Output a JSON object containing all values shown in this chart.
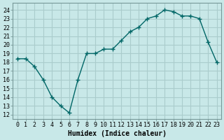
{
  "x": [
    0,
    1,
    2,
    3,
    4,
    5,
    6,
    7,
    8,
    9,
    10,
    11,
    12,
    13,
    14,
    15,
    16,
    17,
    18,
    19,
    20,
    21,
    22,
    23
  ],
  "y": [
    18.4,
    18.4,
    17.5,
    16.0,
    14.0,
    13.0,
    12.2,
    16.0,
    19.0,
    19.0,
    19.5,
    19.5,
    20.5,
    21.5,
    22.0,
    23.0,
    23.3,
    24.0,
    23.8,
    23.3,
    23.3,
    23.0,
    20.3,
    18.0
  ],
  "xlabel": "Humidex (Indice chaleur)",
  "ylabel_ticks": [
    12,
    13,
    14,
    15,
    16,
    17,
    18,
    19,
    20,
    21,
    22,
    23,
    24
  ],
  "ylim": [
    11.5,
    24.8
  ],
  "xlim": [
    -0.5,
    23.5
  ],
  "bg_color": "#c8e8e8",
  "grid_color": "#aacccc",
  "line_color": "#006666",
  "marker_color": "#006666",
  "xlabel_fontsize": 7,
  "tick_fontsize": 6
}
